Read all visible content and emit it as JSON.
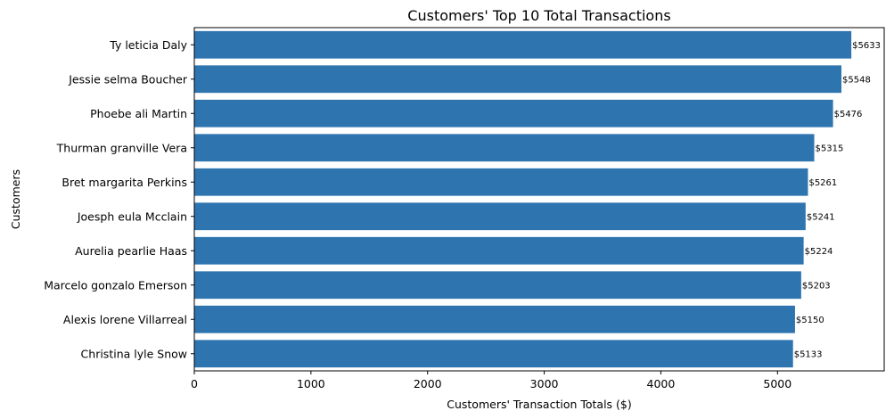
{
  "chart_data": {
    "type": "bar",
    "orientation": "horizontal",
    "title": "Customers' Top 10 Total Transactions",
    "xlabel": "Customers' Transaction Totals ($)",
    "ylabel": "Customers",
    "categories": [
      "Ty leticia Daly",
      "Jessie selma Boucher",
      "Phoebe ali Martin",
      "Thurman granville Vera",
      "Bret margarita Perkins",
      "Joesph eula Mcclain",
      "Aurelia pearlie Haas",
      "Marcelo gonzalo Emerson",
      "Alexis lorene Villarreal",
      "Christina lyle Snow"
    ],
    "values": [
      5633,
      5548,
      5476,
      5315,
      5261,
      5241,
      5224,
      5203,
      5150,
      5133
    ],
    "data_labels": [
      "$5633",
      "$5548",
      "$5476",
      "$5315",
      "$5261",
      "$5241",
      "$5224",
      "$5203",
      "$5150",
      "$5133"
    ],
    "xlim": [
      0,
      5914.65
    ],
    "xticks": [
      0,
      1000,
      2000,
      3000,
      4000,
      5000
    ],
    "xtick_labels": [
      "0",
      "1000",
      "2000",
      "3000",
      "4000",
      "5000"
    ],
    "grid": false,
    "bar_color": "#2e75b0"
  }
}
